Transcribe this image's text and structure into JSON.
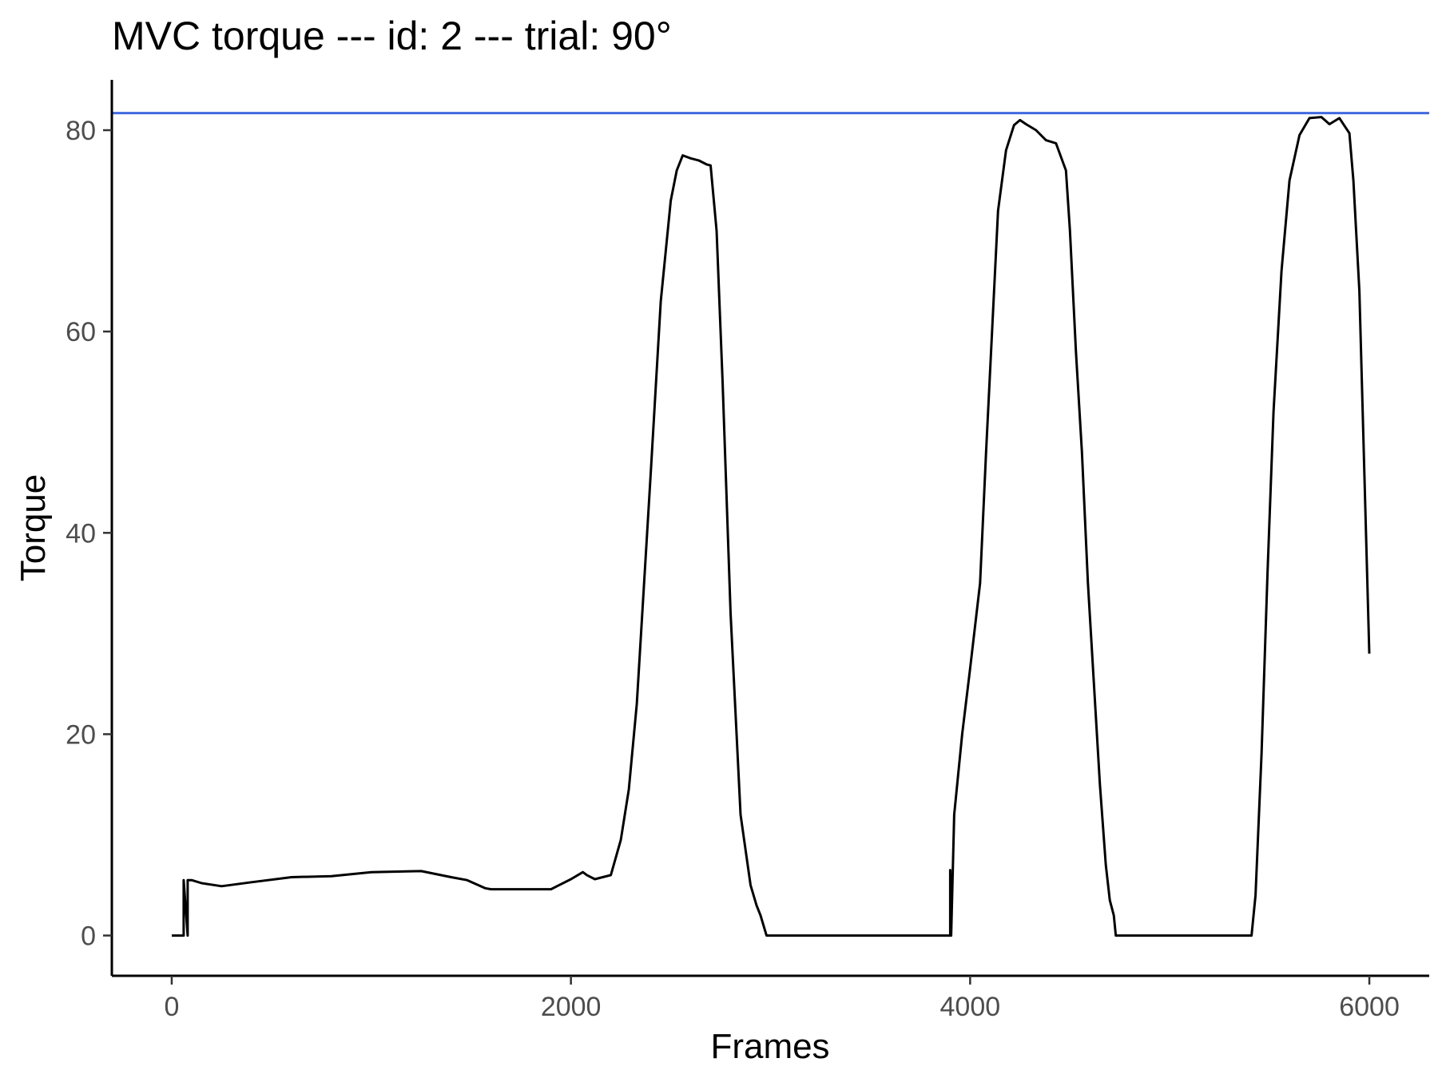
{
  "chart_data": {
    "type": "line",
    "title": "MVC torque --- id: 2 --- trial: 90°",
    "xlabel": "Frames",
    "ylabel": "Torque",
    "xlim": [
      -300,
      6300
    ],
    "ylim": [
      -4,
      85
    ],
    "x_ticks": [
      0,
      2000,
      4000,
      6000
    ],
    "y_ticks": [
      0,
      20,
      40,
      60,
      80
    ],
    "grid": false,
    "line_color": "#000000",
    "reference_line": {
      "y": 81.7,
      "color": "#4169E1"
    },
    "series": [
      {
        "x": [
          0,
          60,
          60,
          80,
          80,
          100,
          150,
          250,
          400,
          600,
          800,
          1000,
          1250,
          1400,
          1480,
          1570,
          1600,
          1700,
          1900,
          1930,
          2000,
          2060,
          2080,
          2120,
          2200,
          2250,
          2290,
          2330,
          2400,
          2450,
          2500,
          2530,
          2560,
          2600,
          2640,
          2680,
          2700,
          2730,
          2760,
          2800,
          2850,
          2900,
          2930,
          2950,
          2980,
          3000,
          3020,
          3050,
          3080,
          3100,
          3120,
          3900,
          3900,
          3905,
          3920,
          3960,
          4000,
          4050,
          4080,
          4110,
          4140,
          4180,
          4220,
          4250,
          4280,
          4330,
          4380,
          4430,
          4480,
          4500,
          4530,
          4560,
          4590,
          4620,
          4650,
          4680,
          4700,
          4720,
          4730,
          4760,
          5400,
          5410,
          5430,
          5460,
          5490,
          5520,
          5560,
          5600,
          5650,
          5700,
          5760,
          5800,
          5850,
          5880,
          5900,
          5920,
          5950,
          6000
        ],
        "y": [
          0,
          0,
          5.5,
          0,
          5.5,
          5.5,
          5.2,
          4.9,
          5.3,
          5.8,
          5.9,
          6.3,
          6.4,
          5.8,
          5.5,
          4.7,
          4.6,
          4.6,
          4.6,
          4.9,
          5.6,
          6.3,
          6.0,
          5.6,
          6.0,
          9.5,
          14.5,
          23.0,
          46.0,
          63.0,
          73.0,
          76.0,
          77.5,
          77.2,
          77.0,
          76.6,
          76.5,
          70.0,
          55.0,
          32.0,
          12.0,
          5.0,
          3.0,
          2.0,
          0,
          0,
          0,
          0,
          0,
          0,
          0,
          0,
          6.5,
          0,
          12.0,
          20.0,
          26.5,
          35.0,
          48.0,
          60.0,
          72.0,
          78.0,
          80.5,
          81.0,
          80.6,
          80.0,
          79.0,
          78.7,
          76.0,
          70.0,
          58.0,
          48.0,
          35.0,
          25.0,
          15.0,
          7.0,
          3.5,
          2.0,
          0,
          0,
          0,
          0,
          4.0,
          18.0,
          36.0,
          52.0,
          66.0,
          75.0,
          79.5,
          81.2,
          81.3,
          80.6,
          81.2,
          80.3,
          79.7,
          75.0,
          64.0,
          28.0
        ]
      }
    ]
  }
}
